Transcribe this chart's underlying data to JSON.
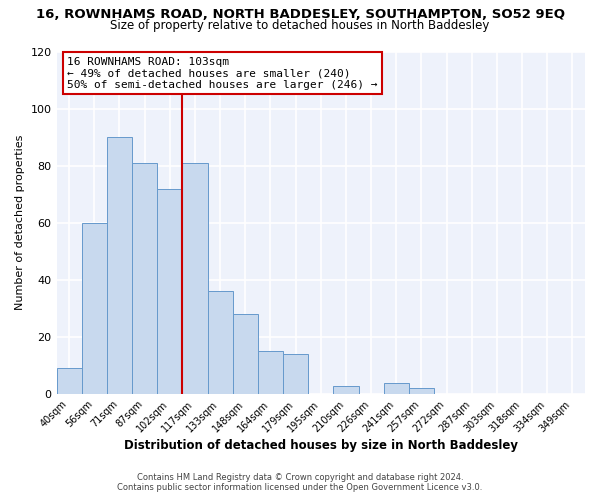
{
  "title": "16, ROWNHAMS ROAD, NORTH BADDESLEY, SOUTHAMPTON, SO52 9EQ",
  "subtitle": "Size of property relative to detached houses in North Baddesley",
  "xlabel": "Distribution of detached houses by size in North Baddesley",
  "ylabel": "Number of detached properties",
  "bar_color": "#c8d9ee",
  "bar_edge_color": "#6699cc",
  "categories": [
    "40sqm",
    "56sqm",
    "71sqm",
    "87sqm",
    "102sqm",
    "117sqm",
    "133sqm",
    "148sqm",
    "164sqm",
    "179sqm",
    "195sqm",
    "210sqm",
    "226sqm",
    "241sqm",
    "257sqm",
    "272sqm",
    "287sqm",
    "303sqm",
    "318sqm",
    "334sqm",
    "349sqm"
  ],
  "values": [
    9,
    60,
    90,
    81,
    72,
    81,
    36,
    28,
    15,
    14,
    0,
    3,
    0,
    4,
    2,
    0,
    0,
    0,
    0,
    0,
    0
  ],
  "ylim": [
    0,
    120
  ],
  "yticks": [
    0,
    20,
    40,
    60,
    80,
    100,
    120
  ],
  "vline_index": 4,
  "vline_color": "#cc0000",
  "annotation_line1": "16 ROWNHAMS ROAD: 103sqm",
  "annotation_line2": "← 49% of detached houses are smaller (240)",
  "annotation_line3": "50% of semi-detached houses are larger (246) →",
  "footer1": "Contains HM Land Registry data © Crown copyright and database right 2024.",
  "footer2": "Contains public sector information licensed under the Open Government Licence v3.0.",
  "bg_color": "#ffffff",
  "plot_bg_color": "#eef2fb"
}
